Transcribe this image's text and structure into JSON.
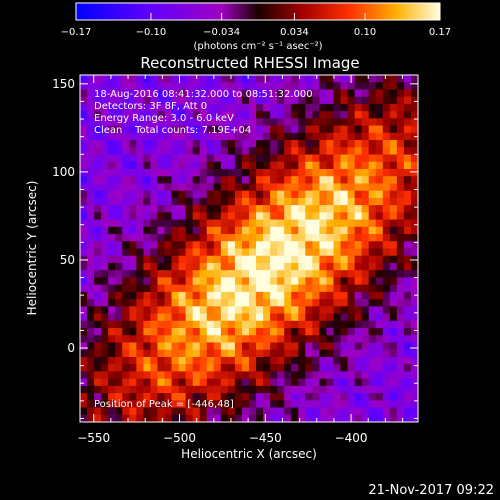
{
  "chart_data": {
    "type": "heatmap",
    "title": "Reconstructed RHESSI Image",
    "xlabel": "Heliocentric X (arcsec)",
    "ylabel": "Heliocentric Y (arcsec)",
    "xlim": [
      -558,
      -361
    ],
    "ylim": [
      -42,
      155
    ],
    "x_ticks": [
      -550,
      -500,
      -450,
      -400
    ],
    "y_ticks": [
      0,
      50,
      100,
      150
    ],
    "info_lines": [
      "18-Aug-2016 08:41:32.000 to 08:51:32.000",
      "Detectors: 3F 8F, Att 0",
      "Energy Range: 3.0 - 6.0 keV",
      "Clean    Total counts: 7.19E+04"
    ],
    "peak_label": "Position of Peak = [-446,48]",
    "peak": [
      -446,
      48
    ],
    "colorbar": {
      "range": [
        -0.17,
        0.17
      ],
      "tick_labels": [
        "-0.17",
        "-0.10",
        "-0.034",
        "0.034",
        "0.10",
        "0.17"
      ],
      "unit": "(photons cm⁻² s⁻¹ asec⁻²)"
    }
  },
  "footer": {
    "timestamp": "21-Nov-2017 09:22"
  }
}
